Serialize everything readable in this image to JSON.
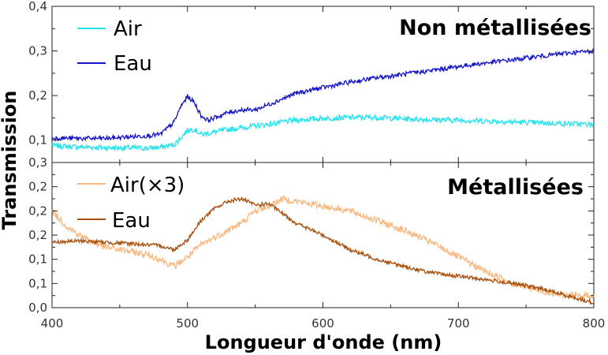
{
  "chart_data": [
    {
      "type": "line",
      "title": "Non métallisées",
      "ylabel": "Transmission",
      "xlim": [
        400,
        800
      ],
      "ylim": [
        0.05,
        0.4
      ],
      "yticks": [
        {
          "value": 0.1,
          "label": "0,1"
        },
        {
          "value": 0.2,
          "label": "0,2"
        },
        {
          "value": 0.3,
          "label": "0,3"
        },
        {
          "value": 0.4,
          "label": "0,4"
        }
      ],
      "legend_position": "top-left",
      "series": [
        {
          "name": "Air",
          "color": "#22e4ee",
          "noise": 0.006,
          "x": [
            400,
            420,
            440,
            460,
            470,
            480,
            490,
            495,
            500,
            505,
            510,
            520,
            530,
            540,
            550,
            560,
            580,
            600,
            620,
            640,
            660,
            680,
            700,
            720,
            740,
            760,
            780,
            800
          ],
          "y": [
            0.088,
            0.085,
            0.083,
            0.083,
            0.082,
            0.084,
            0.09,
            0.105,
            0.122,
            0.125,
            0.113,
            0.118,
            0.124,
            0.128,
            0.132,
            0.136,
            0.145,
            0.149,
            0.151,
            0.151,
            0.148,
            0.146,
            0.145,
            0.143,
            0.141,
            0.139,
            0.137,
            0.135
          ]
        },
        {
          "name": "Eau",
          "color": "#1414c8",
          "noise": 0.005,
          "x": [
            400,
            420,
            440,
            460,
            470,
            480,
            490,
            495,
            500,
            505,
            510,
            515,
            520,
            530,
            540,
            550,
            560,
            580,
            600,
            620,
            640,
            660,
            680,
            700,
            720,
            740,
            760,
            780,
            800
          ],
          "y": [
            0.105,
            0.104,
            0.104,
            0.108,
            0.11,
            0.113,
            0.14,
            0.175,
            0.198,
            0.185,
            0.155,
            0.145,
            0.15,
            0.162,
            0.168,
            0.168,
            0.18,
            0.205,
            0.218,
            0.23,
            0.24,
            0.248,
            0.256,
            0.265,
            0.273,
            0.28,
            0.288,
            0.295,
            0.3
          ]
        }
      ]
    },
    {
      "type": "line",
      "title": "Métallisées",
      "xlabel": "Longueur d'onde (nm)",
      "ylabel": "Transmission",
      "xlim": [
        400,
        800
      ],
      "ylim": [
        0.0,
        0.3
      ],
      "xticks": [
        {
          "value": 400,
          "label": "400"
        },
        {
          "value": 500,
          "label": "500"
        },
        {
          "value": 600,
          "label": "600"
        },
        {
          "value": 700,
          "label": "700"
        },
        {
          "value": 800,
          "label": "800"
        }
      ],
      "yticks": [
        {
          "value": 0.0,
          "label": "0,0"
        },
        {
          "value": 0.05,
          "label": "0,1"
        },
        {
          "value": 0.1,
          "label": "0,1"
        },
        {
          "value": 0.15,
          "label": "0,2"
        },
        {
          "value": 0.2,
          "label": "0,2"
        },
        {
          "value": 0.25,
          "label": "0,2"
        },
        {
          "value": 0.3,
          "label": "0,3"
        }
      ],
      "legend_position": "top-left",
      "series": [
        {
          "name": "Air(×3)",
          "color": "#f8b87e",
          "noise": 0.007,
          "x": [
            400,
            405,
            410,
            420,
            430,
            440,
            450,
            460,
            470,
            480,
            490,
            500,
            510,
            520,
            530,
            540,
            550,
            560,
            570,
            580,
            600,
            620,
            640,
            660,
            680,
            700,
            720,
            740,
            760,
            780,
            800
          ],
          "y": [
            0.2,
            0.185,
            0.17,
            0.15,
            0.135,
            0.125,
            0.12,
            0.115,
            0.11,
            0.1,
            0.085,
            0.105,
            0.13,
            0.145,
            0.16,
            0.175,
            0.2,
            0.21,
            0.225,
            0.22,
            0.21,
            0.2,
            0.18,
            0.16,
            0.135,
            0.105,
            0.075,
            0.05,
            0.035,
            0.025,
            0.025
          ]
        },
        {
          "name": "Eau",
          "color": "#a8500e",
          "noise": 0.004,
          "x": [
            400,
            420,
            440,
            460,
            480,
            490,
            500,
            510,
            520,
            530,
            540,
            550,
            560,
            570,
            580,
            600,
            620,
            640,
            660,
            680,
            700,
            720,
            740,
            760,
            780,
            800
          ],
          "y": [
            0.135,
            0.138,
            0.135,
            0.132,
            0.128,
            0.12,
            0.14,
            0.18,
            0.205,
            0.22,
            0.225,
            0.212,
            0.215,
            0.195,
            0.175,
            0.15,
            0.12,
            0.1,
            0.085,
            0.072,
            0.065,
            0.058,
            0.05,
            0.04,
            0.025,
            0.01
          ]
        }
      ]
    }
  ]
}
